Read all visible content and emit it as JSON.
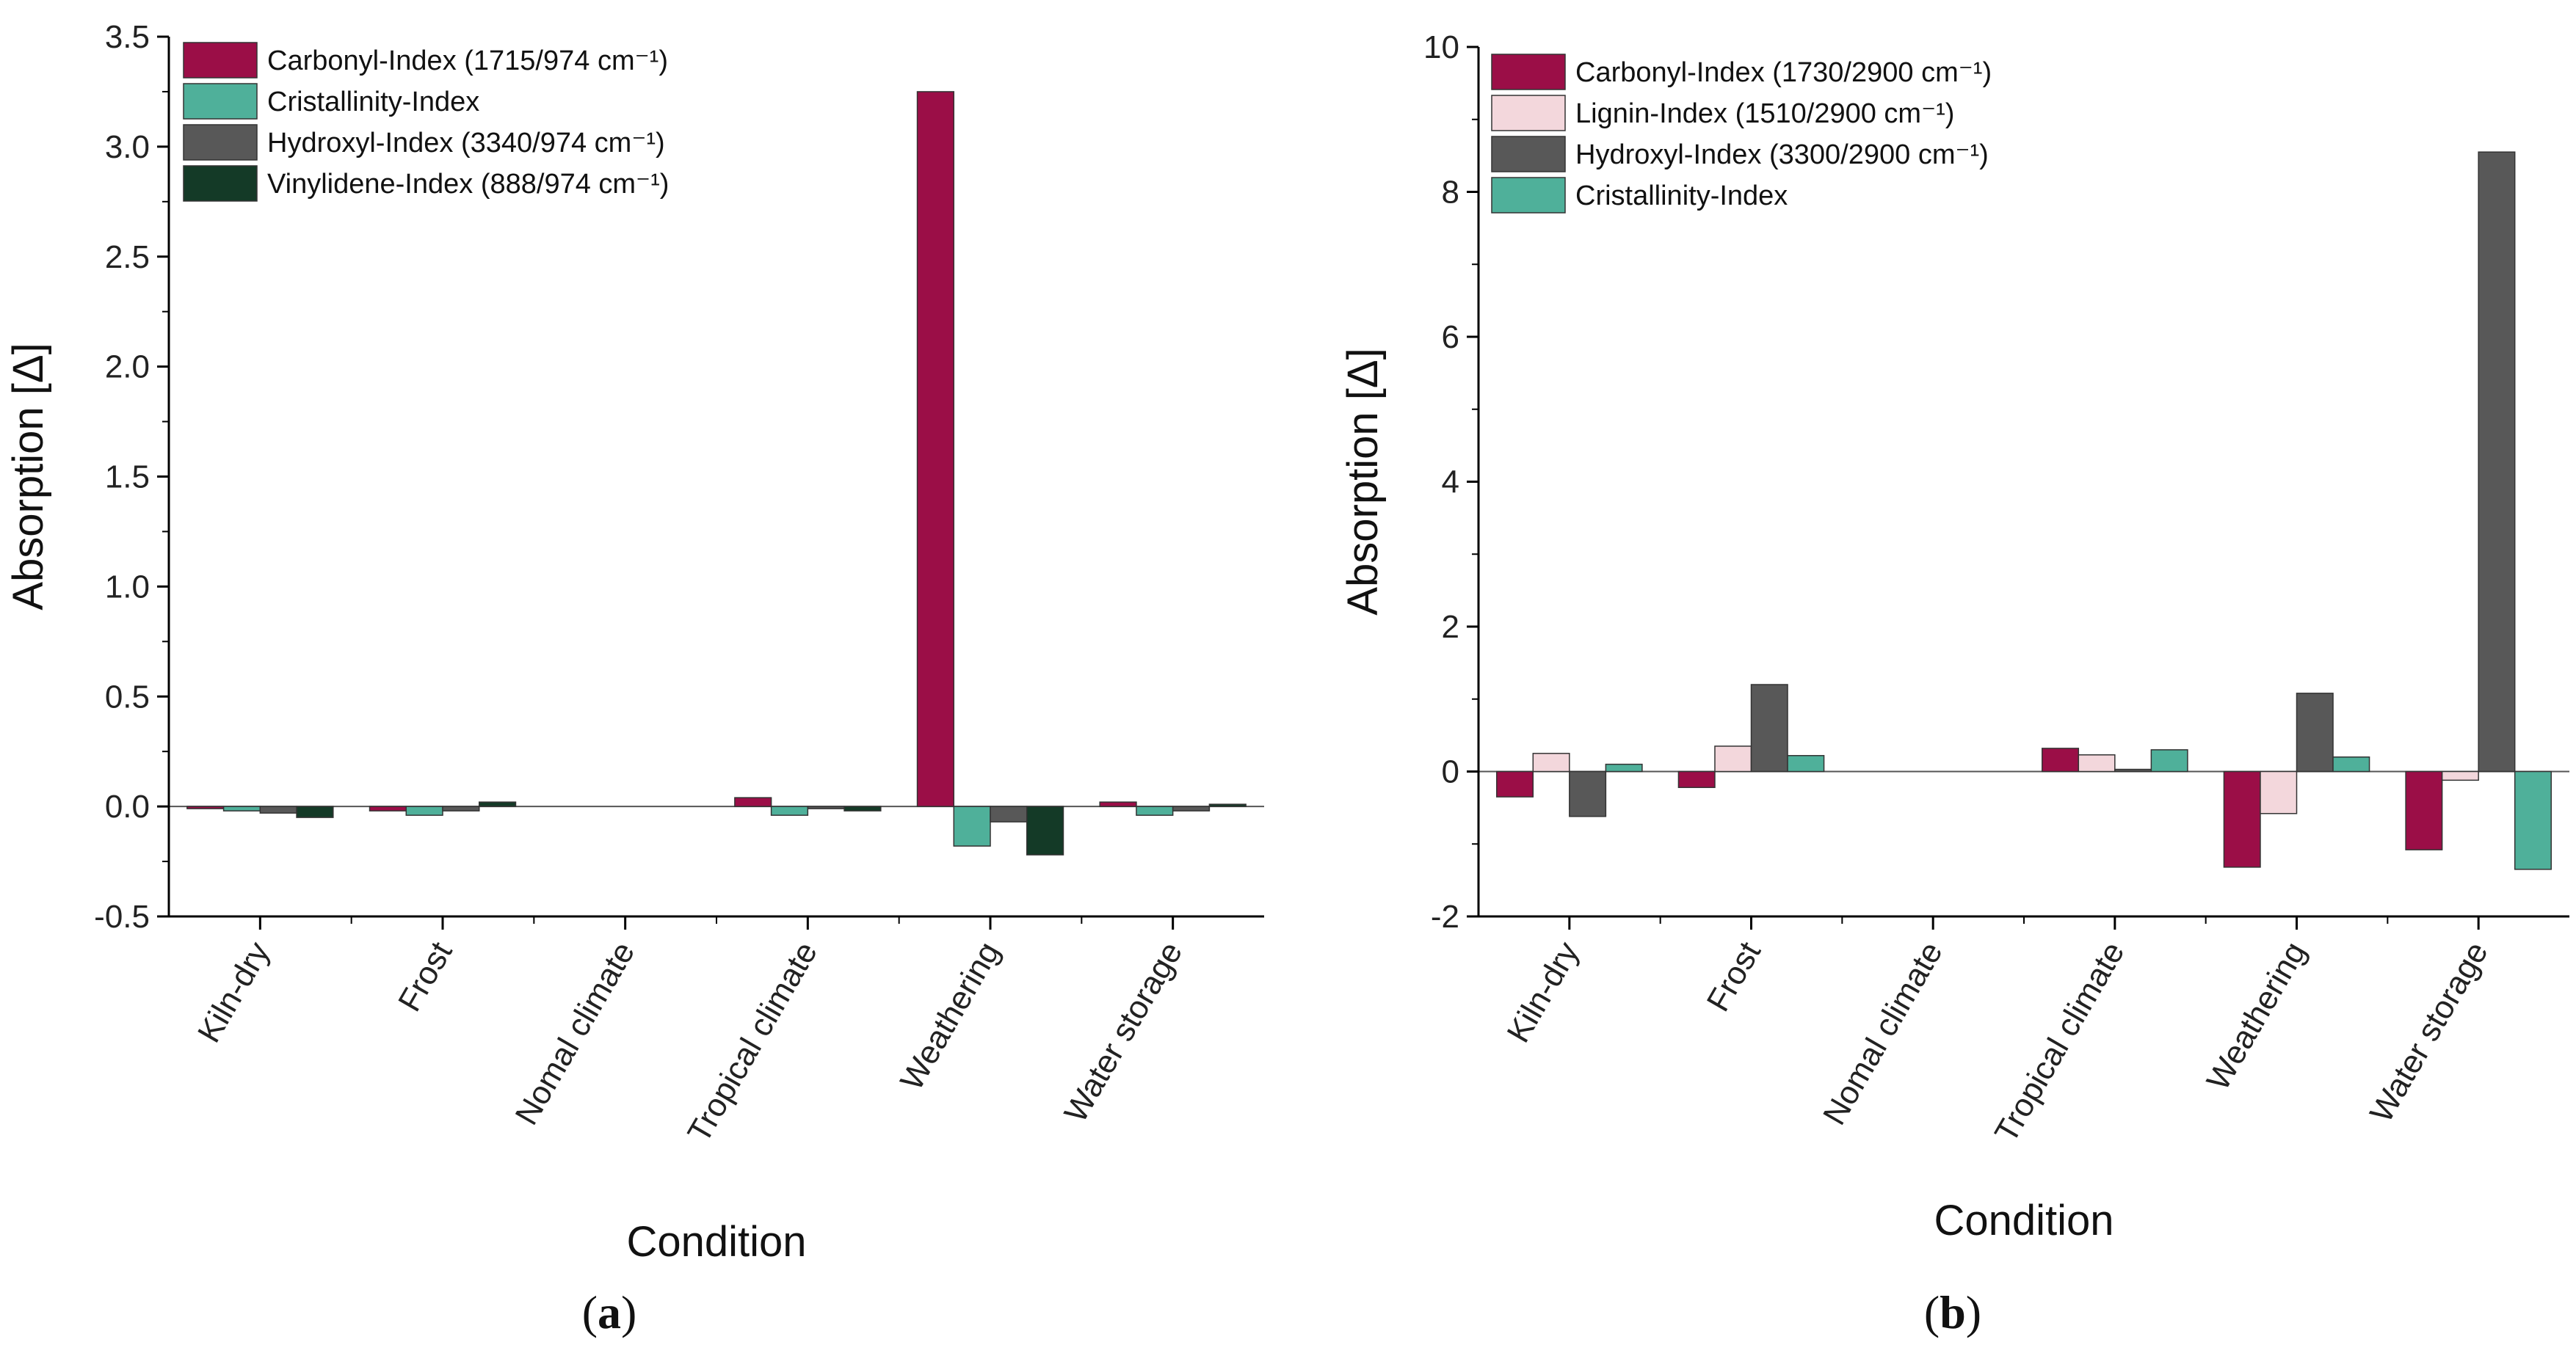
{
  "chart_data": [
    {
      "type": "bar",
      "panel_label": "a",
      "categories": [
        "Kiln-dry",
        "Frost",
        "Nomal climate",
        "Tropical climate",
        "Weathering",
        "Water storage"
      ],
      "series": [
        {
          "name": "Carbonyl-Index (1715/974 cm⁻¹)",
          "color": "#9b0e47",
          "values": [
            -0.01,
            -0.02,
            0.0,
            0.04,
            3.25,
            0.02
          ]
        },
        {
          "name": "Cristallinity-Index",
          "color": "#4fb09a",
          "values": [
            -0.02,
            -0.04,
            0.0,
            -0.04,
            -0.18,
            -0.04
          ]
        },
        {
          "name": "Hydroxyl-Index (3340/974 cm⁻¹)",
          "color": "#585858",
          "values": [
            -0.03,
            -0.02,
            0.0,
            -0.01,
            -0.07,
            -0.02
          ]
        },
        {
          "name": "Vinylidene-Index (888/974 cm⁻¹)",
          "color": "#143a27",
          "values": [
            -0.05,
            0.02,
            0.0,
            -0.02,
            -0.22,
            0.01
          ]
        }
      ],
      "xlabel": "Condition",
      "ylabel": "Absorption [Δ]",
      "ylim": [
        -0.5,
        3.5
      ],
      "yticks": [
        "-0.5",
        "0.0",
        "0.5",
        "1.0",
        "1.5",
        "2.0",
        "2.5",
        "3.0",
        "3.5"
      ],
      "ytick_values": [
        -0.5,
        0.0,
        0.5,
        1.0,
        1.5,
        2.0,
        2.5,
        3.0,
        3.5
      ],
      "legend_position": "top-left"
    },
    {
      "type": "bar",
      "panel_label": "b",
      "categories": [
        "Kiln-dry",
        "Frost",
        "Nomal climate",
        "Tropical climate",
        "Weathering",
        "Water storage"
      ],
      "series": [
        {
          "name": "Carbonyl-Index (1730/2900 cm⁻¹)",
          "color": "#9b0e47",
          "values": [
            -0.35,
            -0.22,
            0.0,
            0.32,
            -1.32,
            -1.08
          ]
        },
        {
          "name": "Lignin-Index (1510/2900 cm⁻¹)",
          "color": "#f3d7dc",
          "values": [
            0.25,
            0.35,
            0.0,
            0.23,
            -0.58,
            -0.12
          ]
        },
        {
          "name": "Hydroxyl-Index (3300/2900 cm⁻¹)",
          "color": "#585858",
          "values": [
            -0.62,
            1.2,
            0.0,
            0.03,
            1.08,
            8.55
          ]
        },
        {
          "name": "Cristallinity-Index",
          "color": "#4fb09a",
          "values": [
            0.1,
            0.22,
            0.0,
            0.3,
            0.2,
            -1.35
          ]
        }
      ],
      "xlabel": "Condition",
      "ylabel": "Absorption [Δ]",
      "ylim": [
        -2,
        10
      ],
      "yticks": [
        "-2",
        "0",
        "2",
        "4",
        "6",
        "8",
        "10"
      ],
      "ytick_values": [
        -2,
        0,
        2,
        4,
        6,
        8,
        10
      ],
      "legend_position": "top-left"
    }
  ]
}
